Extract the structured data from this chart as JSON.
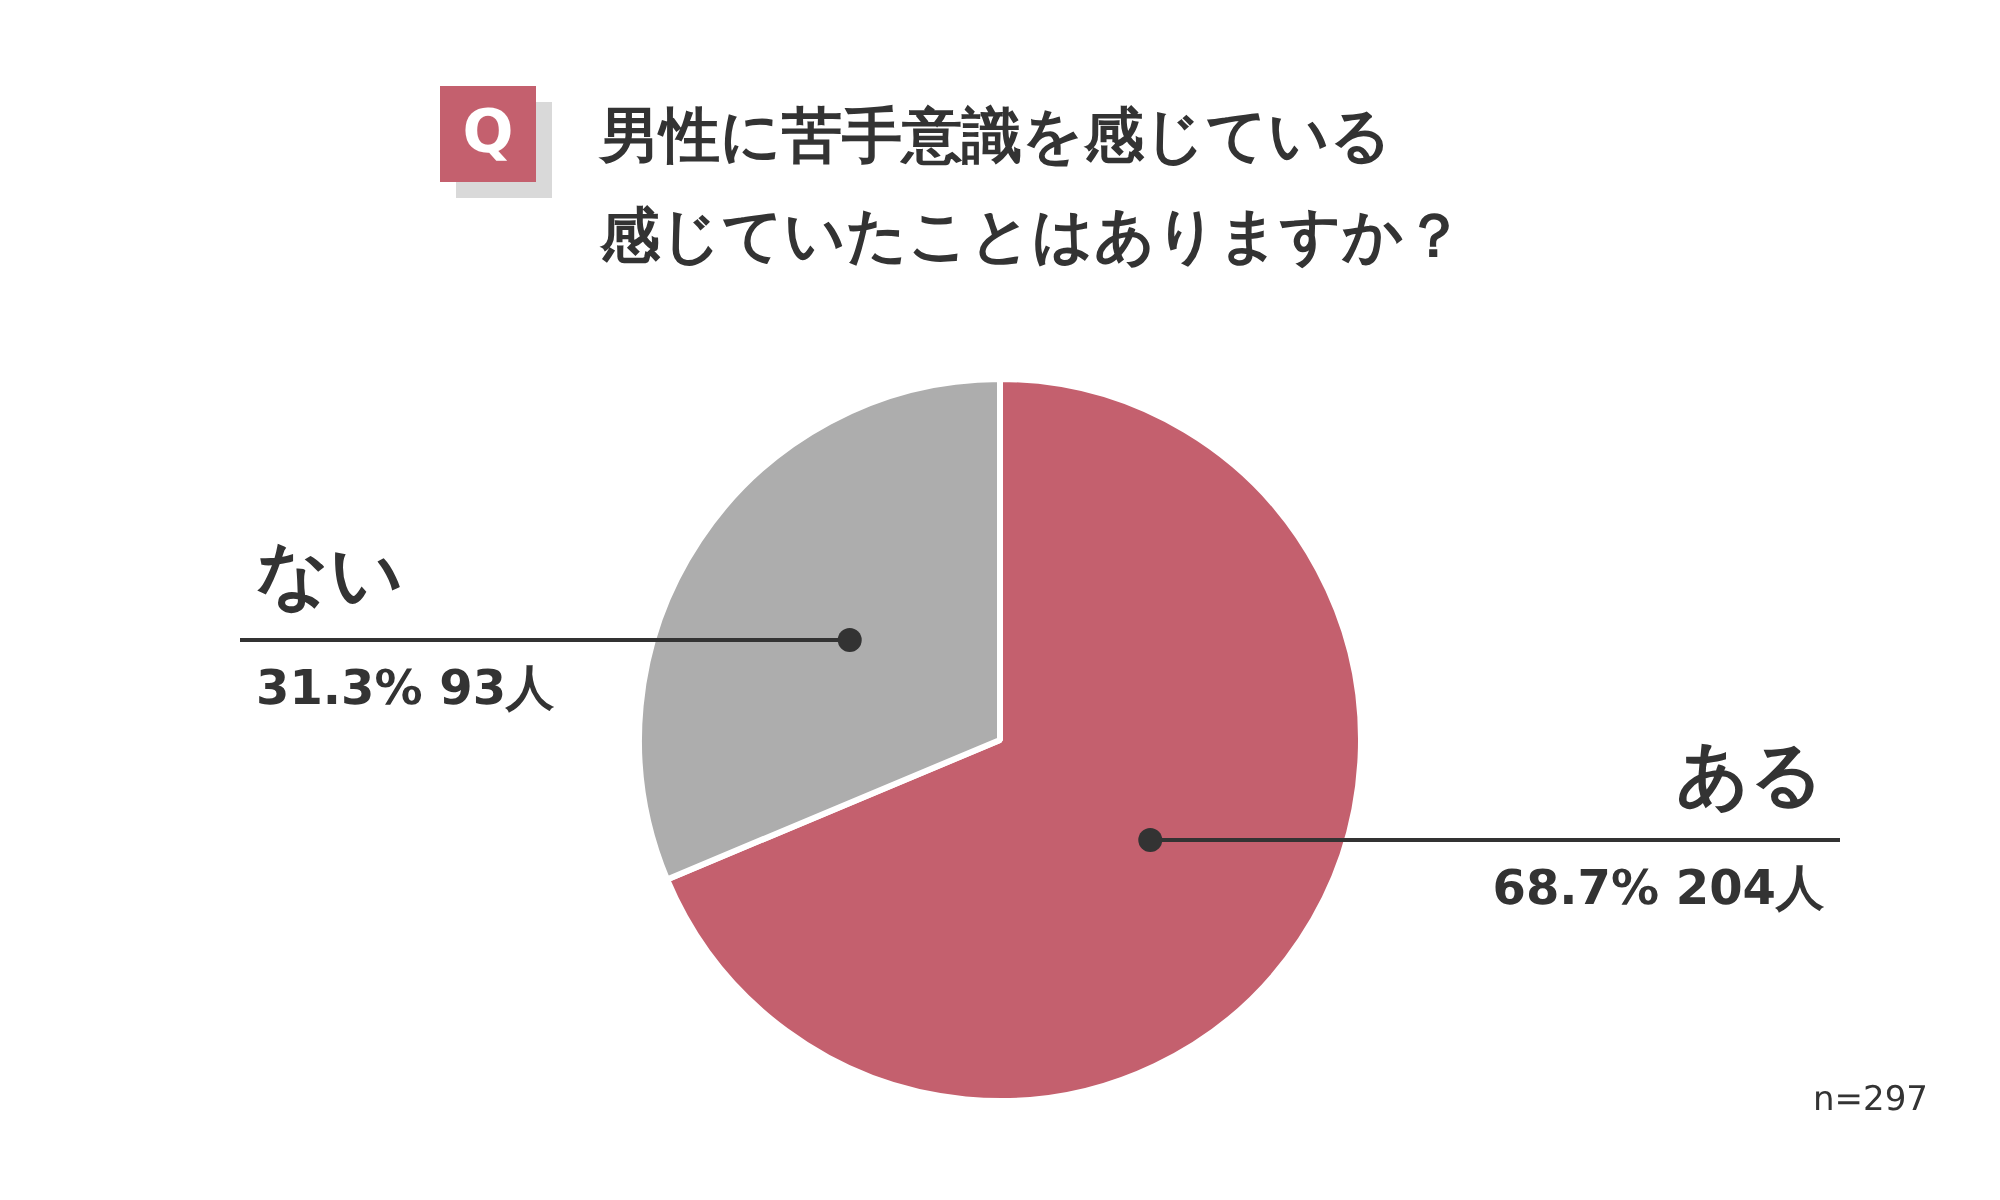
{
  "chart_data": {
    "type": "pie",
    "title": "男性に苦手意識を感じている",
    "subtitle": "感じていたことはありますか？",
    "categories": [
      "ある",
      "ない"
    ],
    "values": [
      204,
      93
    ],
    "colors": [
      "#c4606e",
      "#adadad"
    ],
    "value_labels": [
      "68.7% 204人",
      "31.3% 93人"
    ],
    "legend": false,
    "annotations": [
      "Q",
      "n=297"
    ]
  }
}
